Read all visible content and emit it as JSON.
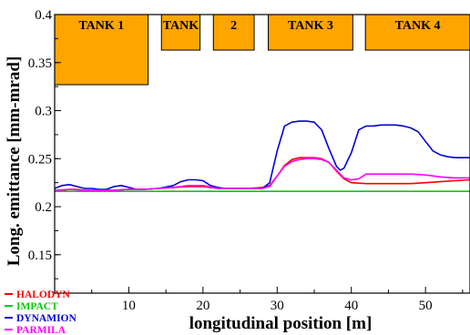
{
  "chart_data": {
    "type": "line",
    "xlabel": "longitudinal position  [m]",
    "ylabel": "Long. emittance  [mm-mrad]",
    "xlim": [
      0,
      56
    ],
    "ylim": [
      0.11,
      0.4
    ],
    "x_ticks": [
      {
        "value": 10,
        "label": "10"
      },
      {
        "value": 20,
        "label": "20"
      },
      {
        "value": 30,
        "label": "30"
      },
      {
        "value": 40,
        "label": "40"
      },
      {
        "value": 50,
        "label": "50"
      }
    ],
    "y_ticks": [
      {
        "value": 0.15,
        "label": "0.15"
      },
      {
        "value": 0.2,
        "label": "0.2"
      },
      {
        "value": 0.25,
        "label": "0.25"
      },
      {
        "value": 0.3,
        "label": "0.3"
      },
      {
        "value": 0.35,
        "label": "0.35"
      },
      {
        "value": 0.4,
        "label": "0.4"
      }
    ],
    "grid": false,
    "legend_position": "bottom-left, outside",
    "annotations": [
      {
        "label": "TANK 1",
        "x_start": 0,
        "x_end": 12.6,
        "y_bottom": 0.327
      },
      {
        "label": "TANK",
        "x_start": 14.4,
        "x_end": 19.6,
        "y_bottom": 0.363
      },
      {
        "label": "2",
        "x_start": 21.4,
        "x_end": 26.9,
        "y_bottom": 0.363
      },
      {
        "label": "TANK 3",
        "x_start": 28.8,
        "x_end": 40.2,
        "y_bottom": 0.363
      },
      {
        "label": "TANK 4",
        "x_start": 41.9,
        "x_end": 56,
        "y_bottom": 0.363
      }
    ],
    "series": [
      {
        "name": "HALODYN",
        "color": "#ff0000",
        "x": [
          0,
          1,
          2,
          3,
          4,
          5,
          6,
          8,
          10,
          12,
          14,
          16,
          18,
          20,
          21,
          22,
          24,
          26,
          28,
          29,
          30,
          31,
          32,
          33,
          34,
          35,
          36,
          37,
          38,
          39,
          40,
          42,
          44,
          46,
          48,
          50,
          52,
          54,
          56
        ],
        "y": [
          0.216,
          0.217,
          0.218,
          0.218,
          0.217,
          0.217,
          0.217,
          0.217,
          0.218,
          0.218,
          0.219,
          0.22,
          0.221,
          0.221,
          0.22,
          0.219,
          0.219,
          0.219,
          0.22,
          0.222,
          0.232,
          0.243,
          0.249,
          0.251,
          0.251,
          0.251,
          0.25,
          0.246,
          0.237,
          0.229,
          0.225,
          0.224,
          0.224,
          0.224,
          0.224,
          0.225,
          0.226,
          0.227,
          0.228
        ]
      },
      {
        "name": "IMPACT",
        "color": "#00cc00",
        "x": [
          0,
          56
        ],
        "y": [
          0.216,
          0.216
        ]
      },
      {
        "name": "DYNAMION",
        "color": "#0000dd",
        "x": [
          0,
          1,
          2,
          3,
          4,
          5,
          6,
          7,
          8,
          9,
          10,
          11,
          12,
          14,
          16,
          17,
          18,
          19,
          20,
          21,
          22,
          23,
          24,
          26,
          28,
          29,
          30,
          31,
          32,
          33,
          34,
          35,
          36,
          37,
          38,
          38.5,
          39,
          40,
          41,
          42,
          43,
          44,
          45,
          46,
          47,
          48,
          49,
          50,
          51,
          52,
          53,
          54,
          55,
          56
        ],
        "y": [
          0.219,
          0.222,
          0.223,
          0.221,
          0.219,
          0.219,
          0.218,
          0.218,
          0.221,
          0.222,
          0.22,
          0.218,
          0.218,
          0.219,
          0.222,
          0.226,
          0.228,
          0.228,
          0.227,
          0.222,
          0.22,
          0.219,
          0.219,
          0.219,
          0.219,
          0.225,
          0.258,
          0.284,
          0.288,
          0.289,
          0.289,
          0.288,
          0.28,
          0.26,
          0.242,
          0.238,
          0.24,
          0.256,
          0.28,
          0.284,
          0.284,
          0.285,
          0.285,
          0.285,
          0.284,
          0.282,
          0.278,
          0.268,
          0.258,
          0.254,
          0.252,
          0.251,
          0.251,
          0.251
        ]
      },
      {
        "name": "PARMILA",
        "color": "#ff00ff",
        "x": [
          0,
          2,
          4,
          6,
          8,
          10,
          12,
          14,
          16,
          18,
          20,
          22,
          24,
          26,
          28,
          29,
          30,
          31,
          32,
          33,
          34,
          35,
          36,
          37,
          38,
          39,
          40,
          41,
          42,
          43,
          44,
          46,
          48,
          50,
          52,
          54,
          56
        ],
        "y": [
          0.217,
          0.218,
          0.217,
          0.217,
          0.217,
          0.218,
          0.218,
          0.219,
          0.22,
          0.222,
          0.222,
          0.219,
          0.219,
          0.219,
          0.219,
          0.221,
          0.232,
          0.242,
          0.247,
          0.249,
          0.25,
          0.25,
          0.249,
          0.246,
          0.238,
          0.23,
          0.228,
          0.229,
          0.234,
          0.234,
          0.234,
          0.234,
          0.234,
          0.233,
          0.231,
          0.23,
          0.23
        ]
      }
    ]
  }
}
